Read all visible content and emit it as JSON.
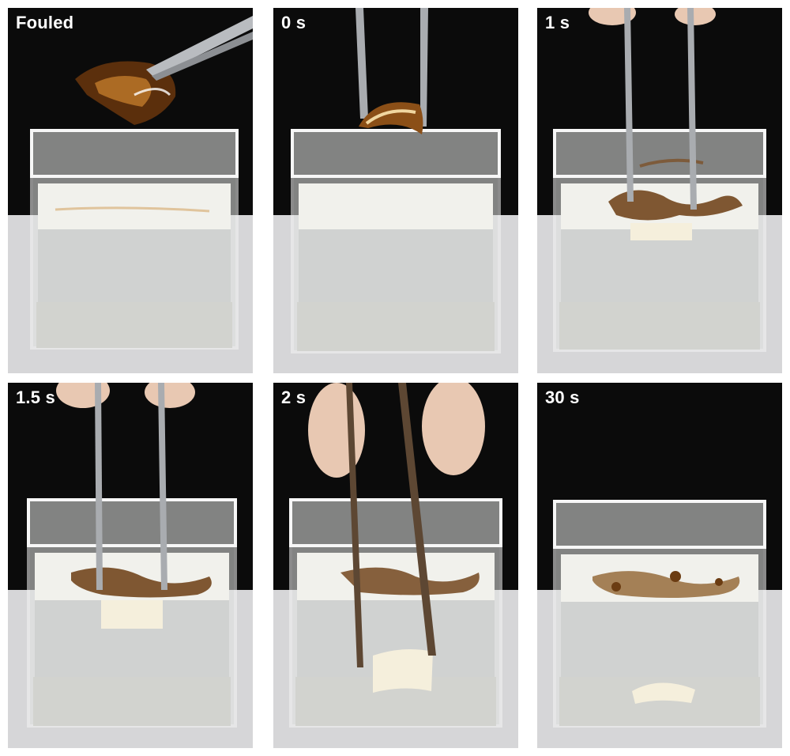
{
  "panels": [
    {
      "label": "Fouled"
    },
    {
      "label": "0 s"
    },
    {
      "label": "1 s"
    },
    {
      "label": "1.5 s"
    },
    {
      "label": "2 s"
    },
    {
      "label": "30 s"
    }
  ],
  "colors": {
    "background": "#0c0c0c",
    "table": "#d9d9db",
    "oil": "#5a3210",
    "liquid": "#eef0ec",
    "film": "#f3ecd8"
  }
}
